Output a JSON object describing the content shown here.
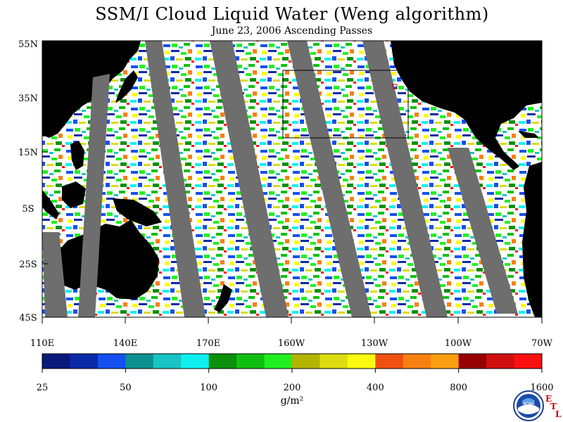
{
  "title": "SSM/I Cloud Liquid Water (Weng algorithm)",
  "subtitle": "June 23, 2006  Ascending Passes",
  "lat_labels": [
    "55N",
    "35N",
    "15N",
    "5S",
    "25S",
    "45S"
  ],
  "lon_labels": [
    "110E",
    "140E",
    "170E",
    "160W",
    "130W",
    "100W",
    "70W"
  ],
  "colorbar": {
    "colors": [
      "#0a1a7a",
      "#0a2aa8",
      "#1450f0",
      "#0a9090",
      "#18c4c4",
      "#10f0f0",
      "#0a900a",
      "#10c010",
      "#20f020",
      "#b4b400",
      "#dcdc10",
      "#fafa10",
      "#f05010",
      "#f88010",
      "#faa010",
      "#960000",
      "#d01010",
      "#fa1010"
    ],
    "tick_labels": [
      "25",
      "50",
      "100",
      "200",
      "400",
      "800",
      "1600"
    ],
    "units": "g/m²"
  },
  "map_colors": {
    "land": "#000000",
    "no_data": "#6e6e6e",
    "ocean_clear": "#ffffff"
  },
  "logo": {
    "noaa_text": "NOAA",
    "etl_letters": [
      "E",
      "T",
      "L"
    ]
  }
}
